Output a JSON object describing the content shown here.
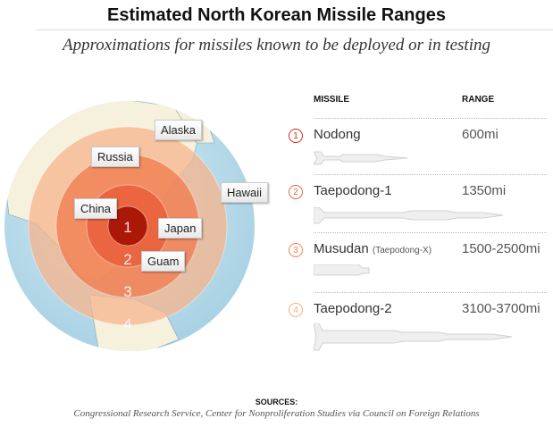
{
  "title": "Estimated North Korean Missile Ranges",
  "subtitle": "Approximations for missiles known to be deployed or in testing",
  "map": {
    "labels": {
      "alaska": "Alaska",
      "russia": "Russia",
      "hawaii": "Hawaii",
      "china": "China",
      "japan": "Japan",
      "guam": "Guam"
    },
    "ring_numbers": [
      "1",
      "2",
      "3",
      "4"
    ],
    "ring_colors": [
      "#a81405",
      "#e85a35",
      "#f07a4c",
      "#f6b48c"
    ],
    "ocean_color": "#bfe0ee"
  },
  "table": {
    "headers": {
      "missile": "MISSILE",
      "range": "RANGE"
    },
    "rows": [
      {
        "num": "1",
        "name": "Nodong",
        "alias": "",
        "range": "600mi",
        "color": "#d42a1a"
      },
      {
        "num": "2",
        "name": "Taepodong-1",
        "alias": "",
        "range": "1350mi",
        "color": "#e8603a"
      },
      {
        "num": "3",
        "name": "Musudan",
        "alias": "(Taepodong-X)",
        "range": "1500-2500mi",
        "color": "#f0844f"
      },
      {
        "num": "4",
        "name": "Taepodong-2",
        "alias": "",
        "range": "3100-3700mi",
        "color": "#f5b080"
      }
    ]
  },
  "sources": {
    "heading": "SOURCES:",
    "text": "Congressional Research Service, Center for Nonproliferation Studies via Council on Foreign Relations"
  }
}
